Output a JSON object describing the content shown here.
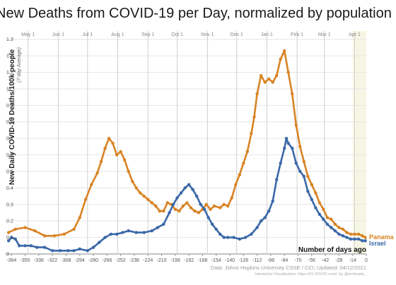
{
  "chart_data": {
    "type": "line",
    "title": "New Deaths from COVID-19 per Day, normalized by population",
    "ylabel": "New Daily COVID-19 Deaths/100k people",
    "ylabel_sub": "(7-day Average)",
    "xlabel": "Number of days ago",
    "source": "Data: Johns Hopkins University CSSE / CCI; Updated: 04/12/2021",
    "source2": "Interactive Visualization: https://91-DIVOC.com/, by @profwade_",
    "xlim": [
      -370,
      0
    ],
    "ylim": [
      0.0,
      1.35
    ],
    "x_ticks": [
      -364,
      -350,
      -336,
      -322,
      -308,
      -294,
      -280,
      -266,
      -252,
      -238,
      -224,
      -210,
      -196,
      -182,
      -168,
      -154,
      -140,
      -126,
      -112,
      -98,
      -84,
      -70,
      -56,
      -42,
      -28,
      -14,
      0
    ],
    "y_ticks": [
      "1.3",
      "1.2",
      "1.1",
      "1",
      "0.9",
      "0.8",
      "0.7",
      "0.6",
      "0.5",
      "0.4",
      "0.3",
      "0.2",
      "0.1",
      "0"
    ],
    "y_tick_values": [
      1.3,
      1.2,
      1.1,
      1.0,
      0.9,
      0.8,
      0.7,
      0.6,
      0.5,
      0.4,
      0.3,
      0.2,
      0.1,
      0
    ],
    "months": [
      {
        "label": "May 1",
        "x": -347
      },
      {
        "label": "Jun 1",
        "x": -316
      },
      {
        "label": "Jul 1",
        "x": -286
      },
      {
        "label": "Aug 1",
        "x": -255
      },
      {
        "label": "Sep 1",
        "x": -224
      },
      {
        "label": "Oct 1",
        "x": -194
      },
      {
        "label": "Nov 1",
        "x": -163
      },
      {
        "label": "Dec 1",
        "x": -133
      },
      {
        "label": "Jan 1",
        "x": -102
      },
      {
        "label": "Feb 1",
        "x": -71
      },
      {
        "label": "Mar 1",
        "x": -43
      },
      {
        "label": "Apr 1",
        "x": -12
      }
    ],
    "grid": true,
    "series": [
      {
        "name": "Panama",
        "color": "#d98324",
        "points": [
          [
            -367,
            0.13
          ],
          [
            -360,
            0.15
          ],
          [
            -350,
            0.16
          ],
          [
            -340,
            0.14
          ],
          [
            -330,
            0.11
          ],
          [
            -320,
            0.11
          ],
          [
            -310,
            0.12
          ],
          [
            -300,
            0.15
          ],
          [
            -294,
            0.22
          ],
          [
            -288,
            0.33
          ],
          [
            -282,
            0.42
          ],
          [
            -276,
            0.49
          ],
          [
            -272,
            0.56
          ],
          [
            -268,
            0.64
          ],
          [
            -264,
            0.7
          ],
          [
            -260,
            0.67
          ],
          [
            -256,
            0.6
          ],
          [
            -252,
            0.62
          ],
          [
            -248,
            0.57
          ],
          [
            -244,
            0.5
          ],
          [
            -240,
            0.44
          ],
          [
            -236,
            0.4
          ],
          [
            -232,
            0.37
          ],
          [
            -228,
            0.35
          ],
          [
            -224,
            0.33
          ],
          [
            -220,
            0.31
          ],
          [
            -216,
            0.29
          ],
          [
            -212,
            0.26
          ],
          [
            -208,
            0.26
          ],
          [
            -204,
            0.31
          ],
          [
            -200,
            0.3
          ],
          [
            -196,
            0.27
          ],
          [
            -192,
            0.26
          ],
          [
            -188,
            0.29
          ],
          [
            -184,
            0.31
          ],
          [
            -180,
            0.28
          ],
          [
            -176,
            0.26
          ],
          [
            -172,
            0.25
          ],
          [
            -168,
            0.27
          ],
          [
            -164,
            0.3
          ],
          [
            -160,
            0.27
          ],
          [
            -156,
            0.29
          ],
          [
            -150,
            0.28
          ],
          [
            -146,
            0.3
          ],
          [
            -142,
            0.29
          ],
          [
            -138,
            0.34
          ],
          [
            -134,
            0.42
          ],
          [
            -130,
            0.48
          ],
          [
            -126,
            0.55
          ],
          [
            -122,
            0.62
          ],
          [
            -118,
            0.73
          ],
          [
            -115,
            0.83
          ],
          [
            -112,
            0.97
          ],
          [
            -108,
            1.08
          ],
          [
            -104,
            1.04
          ],
          [
            -100,
            1.06
          ],
          [
            -96,
            1.04
          ],
          [
            -92,
            1.08
          ],
          [
            -88,
            1.18
          ],
          [
            -84,
            1.23
          ],
          [
            -80,
            1.1
          ],
          [
            -76,
            0.97
          ],
          [
            -72,
            0.78
          ],
          [
            -68,
            0.65
          ],
          [
            -64,
            0.56
          ],
          [
            -60,
            0.47
          ],
          [
            -56,
            0.42
          ],
          [
            -52,
            0.37
          ],
          [
            -48,
            0.31
          ],
          [
            -44,
            0.27
          ],
          [
            -40,
            0.22
          ],
          [
            -36,
            0.21
          ],
          [
            -32,
            0.18
          ],
          [
            -28,
            0.16
          ],
          [
            -24,
            0.15
          ],
          [
            -20,
            0.13
          ],
          [
            -16,
            0.12
          ],
          [
            -12,
            0.12
          ],
          [
            -8,
            0.12
          ],
          [
            -4,
            0.11
          ],
          [
            -1,
            0.1
          ]
        ]
      },
      {
        "name": "Israel",
        "color": "#3a68a8",
        "points": [
          [
            -367,
            0.08
          ],
          [
            -364,
            0.1
          ],
          [
            -360,
            0.09
          ],
          [
            -356,
            0.05
          ],
          [
            -350,
            0.05
          ],
          [
            -344,
            0.05
          ],
          [
            -338,
            0.04
          ],
          [
            -330,
            0.04
          ],
          [
            -322,
            0.02
          ],
          [
            -314,
            0.02
          ],
          [
            -306,
            0.02
          ],
          [
            -300,
            0.02
          ],
          [
            -294,
            0.03
          ],
          [
            -286,
            0.02
          ],
          [
            -280,
            0.04
          ],
          [
            -274,
            0.07
          ],
          [
            -268,
            0.1
          ],
          [
            -262,
            0.12
          ],
          [
            -256,
            0.12
          ],
          [
            -250,
            0.13
          ],
          [
            -244,
            0.14
          ],
          [
            -236,
            0.13
          ],
          [
            -228,
            0.13
          ],
          [
            -220,
            0.14
          ],
          [
            -214,
            0.16
          ],
          [
            -208,
            0.18
          ],
          [
            -202,
            0.25
          ],
          [
            -198,
            0.3
          ],
          [
            -194,
            0.34
          ],
          [
            -190,
            0.37
          ],
          [
            -186,
            0.4
          ],
          [
            -182,
            0.42
          ],
          [
            -178,
            0.39
          ],
          [
            -174,
            0.35
          ],
          [
            -170,
            0.3
          ],
          [
            -166,
            0.27
          ],
          [
            -162,
            0.22
          ],
          [
            -158,
            0.18
          ],
          [
            -154,
            0.15
          ],
          [
            -150,
            0.12
          ],
          [
            -146,
            0.1
          ],
          [
            -142,
            0.1
          ],
          [
            -136,
            0.1
          ],
          [
            -130,
            0.09
          ],
          [
            -124,
            0.1
          ],
          [
            -118,
            0.12
          ],
          [
            -112,
            0.16
          ],
          [
            -108,
            0.2
          ],
          [
            -104,
            0.22
          ],
          [
            -100,
            0.26
          ],
          [
            -96,
            0.32
          ],
          [
            -92,
            0.45
          ],
          [
            -88,
            0.55
          ],
          [
            -84,
            0.64
          ],
          [
            -82,
            0.7
          ],
          [
            -80,
            0.67
          ],
          [
            -76,
            0.64
          ],
          [
            -72,
            0.55
          ],
          [
            -68,
            0.5
          ],
          [
            -64,
            0.47
          ],
          [
            -60,
            0.38
          ],
          [
            -56,
            0.33
          ],
          [
            -52,
            0.28
          ],
          [
            -48,
            0.24
          ],
          [
            -44,
            0.21
          ],
          [
            -40,
            0.18
          ],
          [
            -36,
            0.16
          ],
          [
            -32,
            0.14
          ],
          [
            -28,
            0.12
          ],
          [
            -24,
            0.11
          ],
          [
            -20,
            0.1
          ],
          [
            -16,
            0.09
          ],
          [
            -12,
            0.09
          ],
          [
            -8,
            0.09
          ],
          [
            -4,
            0.08
          ],
          [
            -1,
            0.08
          ]
        ]
      }
    ]
  }
}
